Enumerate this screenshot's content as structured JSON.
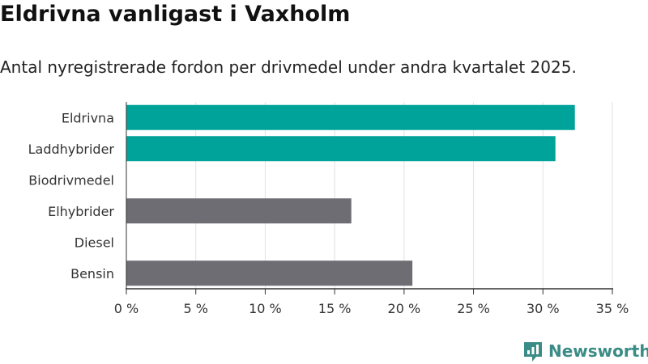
{
  "title": "Eldrivna vanligast i Vaxholm",
  "subtitle": "Antal nyregistrerade fordon per drivmedel under andra kvartalet 2025.",
  "brand": {
    "name": "Newsworthy",
    "icon": "newsworthy-logo-icon"
  },
  "colors": {
    "highlight": "#00a39a",
    "neutral": "#6d6d73",
    "grid": "#e2e2e2",
    "axis": "#333333",
    "brand": "#3a8c86"
  },
  "chart_data": {
    "type": "bar",
    "orientation": "horizontal",
    "categories": [
      "Eldrivna",
      "Laddhybrider",
      "Biodrivmedel",
      "Elhybrider",
      "Diesel",
      "Bensin"
    ],
    "values": [
      32.3,
      30.9,
      0,
      16.2,
      0,
      20.6
    ],
    "highlighted": [
      true,
      true,
      false,
      false,
      false,
      false
    ],
    "xlim": [
      0,
      35
    ],
    "xticks": [
      0,
      5,
      10,
      15,
      20,
      25,
      30,
      35
    ],
    "xtick_labels": [
      "0 %",
      "5 %",
      "10 %",
      "15 %",
      "20 %",
      "25 %",
      "30 %",
      "35 %"
    ],
    "grid": true,
    "legend": "none"
  }
}
